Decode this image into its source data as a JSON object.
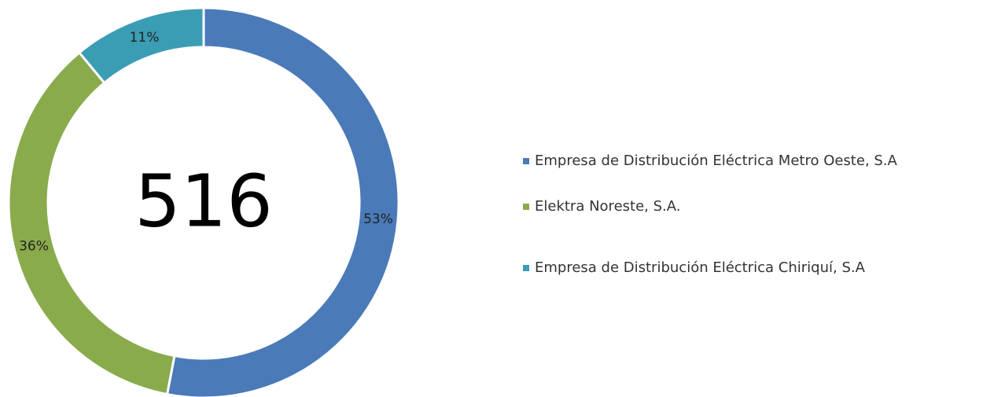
{
  "chart_data": {
    "type": "pie",
    "center_label": "516",
    "categories": [
      "Empresa de Distribución Eléctrica Metro Oeste, S.A",
      "Elektra Noreste, S.A.",
      "Empresa de Distribución Eléctrica Chiriquí, S.A"
    ],
    "values": [
      53,
      36,
      11
    ],
    "value_labels": [
      "53%",
      "36%",
      "11%"
    ],
    "colors": [
      "#4a7ab8",
      "#8aab4c",
      "#3b9db4"
    ],
    "legend": "right"
  }
}
